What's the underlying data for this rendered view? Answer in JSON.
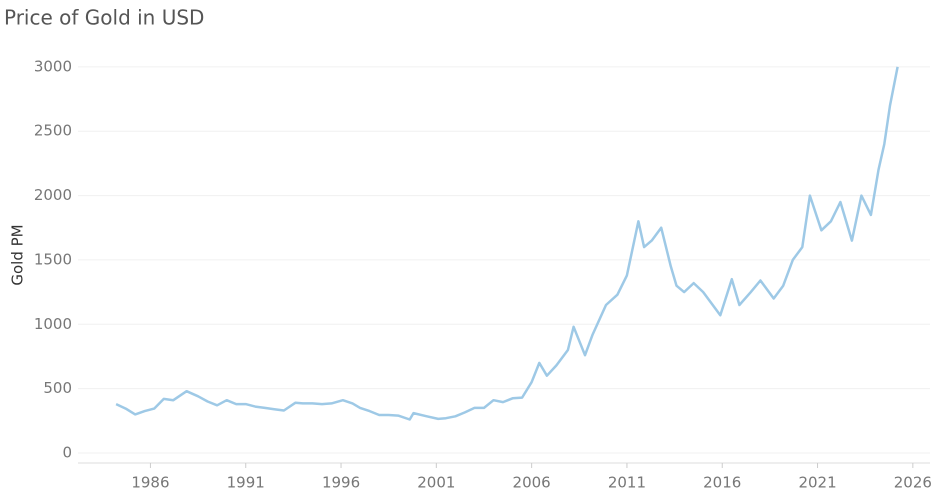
{
  "chart_data": {
    "type": "line",
    "title": "Price of Gold in USD",
    "y_label": "Gold PM",
    "x": [
      1984.2,
      1984.7,
      1985.2,
      1985.7,
      1986.2,
      1986.7,
      1987.2,
      1987.9,
      1988.5,
      1989.0,
      1989.5,
      1990.0,
      1990.5,
      1991.0,
      1991.5,
      1992.0,
      1992.5,
      1993.0,
      1993.6,
      1994.0,
      1994.5,
      1995.0,
      1995.5,
      1996.1,
      1996.6,
      1997.0,
      1997.5,
      1998.0,
      1998.5,
      1999.0,
      1999.6,
      1999.8,
      2000.5,
      2001.1,
      2001.5,
      2002.0,
      2002.5,
      2003.0,
      2003.5,
      2004.0,
      2004.5,
      2005.0,
      2005.5,
      2006.0,
      2006.4,
      2006.8,
      2007.3,
      2007.9,
      2008.2,
      2008.8,
      2009.2,
      2009.9,
      2010.5,
      2011.0,
      2011.6,
      2011.9,
      2012.3,
      2012.8,
      2013.3,
      2013.6,
      2014.0,
      2014.5,
      2015.0,
      2015.9,
      2016.5,
      2016.9,
      2017.5,
      2018.0,
      2018.7,
      2019.2,
      2019.7,
      2020.2,
      2020.6,
      2021.2,
      2021.7,
      2022.2,
      2022.8,
      2023.3,
      2023.8,
      2024.2,
      2024.5,
      2024.8,
      2025.2
    ],
    "series": [
      {
        "name": "Gold PM",
        "color": "#9ec9e6",
        "values": [
          380,
          345,
          300,
          325,
          345,
          420,
          410,
          480,
          440,
          400,
          370,
          410,
          380,
          380,
          360,
          350,
          340,
          330,
          390,
          385,
          385,
          380,
          385,
          410,
          385,
          350,
          325,
          295,
          295,
          290,
          260,
          310,
          285,
          265,
          270,
          285,
          315,
          350,
          350,
          410,
          395,
          425,
          430,
          550,
          700,
          600,
          680,
          800,
          980,
          760,
          920,
          1150,
          1230,
          1380,
          1800,
          1600,
          1650,
          1750,
          1450,
          1300,
          1250,
          1320,
          1250,
          1070,
          1350,
          1150,
          1250,
          1340,
          1200,
          1300,
          1500,
          1600,
          2000,
          1730,
          1800,
          1950,
          1650,
          2000,
          1850,
          2200,
          2400,
          2700,
          3000
        ]
      }
    ],
    "xlim": [
      1982.2,
      2026.9
    ],
    "ylim": [
      -78,
      3170
    ],
    "xticks": [
      1986,
      1991,
      1996,
      2001,
      2006,
      2011,
      2016,
      2021,
      2026
    ],
    "yticks": [
      0,
      500,
      1000,
      1500,
      2000,
      2500,
      3000
    ],
    "grid": true
  }
}
